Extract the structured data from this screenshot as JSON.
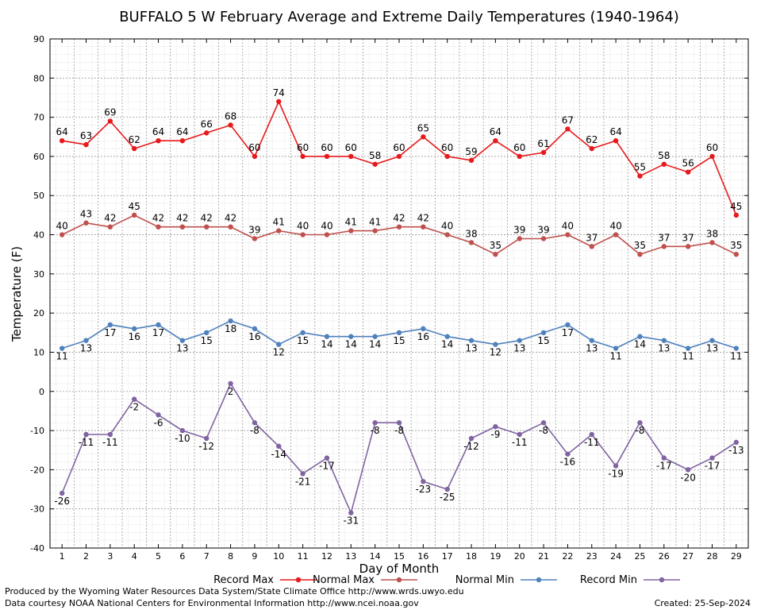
{
  "chart_data": {
    "type": "line",
    "title": "BUFFALO 5 W February Average and Extreme Daily Temperatures (1940-1964)",
    "xlabel": "Day of Month",
    "ylabel": "Temperature (F)",
    "ylim": [
      -40,
      90
    ],
    "yticks": [
      -40,
      -30,
      -20,
      -10,
      0,
      10,
      20,
      30,
      40,
      50,
      60,
      70,
      80,
      90
    ],
    "x": [
      1,
      2,
      3,
      4,
      5,
      6,
      7,
      8,
      9,
      10,
      11,
      12,
      13,
      14,
      15,
      16,
      17,
      18,
      19,
      20,
      21,
      22,
      23,
      24,
      25,
      26,
      27,
      28,
      29
    ],
    "grid": true,
    "legend_position": "bottom",
    "series": [
      {
        "name": "Record Max",
        "color": "#e8191c",
        "label_pos": "above",
        "values": [
          64,
          63,
          69,
          62,
          64,
          64,
          66,
          68,
          60,
          74,
          60,
          60,
          60,
          58,
          60,
          65,
          60,
          59,
          64,
          60,
          61,
          67,
          62,
          64,
          55,
          58,
          56,
          60,
          45
        ]
      },
      {
        "name": "Normal Max",
        "color": "#c0504d",
        "label_pos": "above",
        "values": [
          40,
          43,
          42,
          45,
          42,
          42,
          42,
          42,
          39,
          41,
          40,
          40,
          41,
          41,
          42,
          42,
          40,
          38,
          35,
          39,
          39,
          40,
          37,
          40,
          35,
          37,
          37,
          38,
          35
        ]
      },
      {
        "name": "Normal Min",
        "color": "#4f81bd",
        "label_pos": "below",
        "values": [
          11,
          13,
          17,
          16,
          17,
          13,
          15,
          18,
          16,
          12,
          15,
          14,
          14,
          14,
          15,
          16,
          14,
          13,
          12,
          13,
          15,
          17,
          13,
          11,
          14,
          13,
          11,
          13,
          11
        ]
      },
      {
        "name": "Record Min",
        "color": "#8064a2",
        "label_pos": "below",
        "values": [
          -26,
          -11,
          -11,
          -2,
          -6,
          -10,
          -12,
          2,
          -8,
          -14,
          -21,
          -17,
          -31,
          -8,
          -8,
          -23,
          -25,
          -12,
          -9,
          -11,
          -8,
          -16,
          -11,
          -19,
          -8,
          -17,
          -20,
          -17,
          -13
        ]
      }
    ]
  },
  "footer": {
    "line1": "Produced by the Wyoming Water Resources Data System/State Climate Office http://www.wrds.uwyo.edu",
    "line2": "Data courtesy NOAA National Centers for Environmental Information http://www.ncei.noaa.gov",
    "created": "Created:  25-Sep-2024"
  }
}
